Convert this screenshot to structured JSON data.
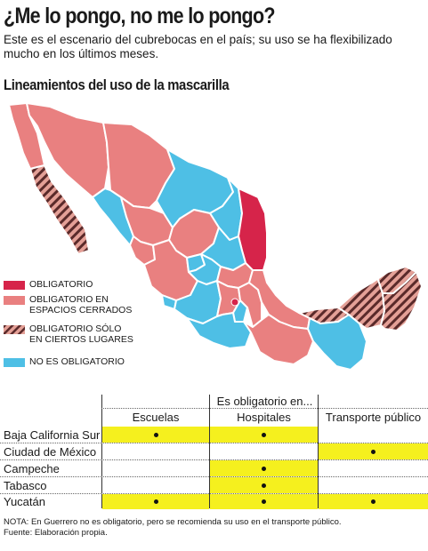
{
  "header": {
    "title": "¿Me lo pongo, no me lo pongo?",
    "subtitle": "Este es el escenario del cubrebocas en el país; su uso se ha flexibilizado mucho en los últimos meses.",
    "section_title": "Lineamientos del uso de la mascarilla"
  },
  "colors": {
    "obligatorio": "#d6244a",
    "espacios_cerrados": "#e98080",
    "ciertos_lugares_base": "#e4a097",
    "ciertos_lugares_stripe": "#5a2a2a",
    "no_obligatorio": "#4ebfe5",
    "highlight": "#f5f01e"
  },
  "legend": [
    {
      "key": "obligatorio",
      "label": "OBLIGATORIO"
    },
    {
      "key": "espacios_cerrados",
      "label": "OBLIGATORIO EN ESPACIOS CERRADOS"
    },
    {
      "key": "ciertos_lugares",
      "label": "OBLIGATORIO SÓLO EN CIERTOS LUGARES"
    },
    {
      "key": "no_obligatorio",
      "label": "NO ES OBLIGATORIO"
    }
  ],
  "table": {
    "group_header": "Es obligatorio en...",
    "columns": [
      "Escuelas",
      "Hospitales",
      "Transporte público"
    ],
    "rows": [
      {
        "state": "Baja California Sur",
        "values": [
          true,
          true,
          false
        ]
      },
      {
        "state": "Ciudad de México",
        "values": [
          false,
          false,
          true
        ]
      },
      {
        "state": "Campeche",
        "values": [
          false,
          true,
          false
        ]
      },
      {
        "state": "Tabasco",
        "values": [
          false,
          true,
          false
        ]
      },
      {
        "state": "Yucatán",
        "values": [
          true,
          true,
          true
        ]
      }
    ]
  },
  "footer": {
    "note": "NOTA: En Guerrero no es obligatorio, pero se recomienda su uso en el transporte público.",
    "source": "Fuente: Elaboración propia."
  }
}
